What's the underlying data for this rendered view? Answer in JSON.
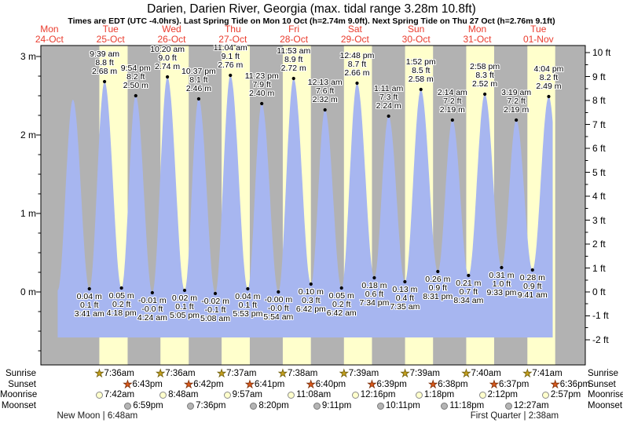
{
  "title": "Darien, Darien River, Georgia (max. tidal range 3.28m 10.8ft)",
  "subtitle": "Times are EDT (UTC -4.0hrs). Last Spring Tide on Mon 10 Oct (h=2.74m 9.0ft). Next Spring Tide on Thu 27 Oct (h=2.76m 9.1ft)",
  "colors": {
    "night_band": "#b2b2b2",
    "day_band": "#ffffcc",
    "tide_fill": "#a7b6f0",
    "day_label_red": "#ea3c2e",
    "sunrise_star": "#c5a01e",
    "sunset_star": "#da5a1c",
    "moonrise_circle": "#ffffcc",
    "moonset_circle": "#b5b5b5"
  },
  "chart_data": {
    "type": "area",
    "series_name": "Tide height",
    "x_axis": {
      "days": [
        {
          "dow": "Mon",
          "date": "24-Oct"
        },
        {
          "dow": "Tue",
          "date": "25-Oct"
        },
        {
          "dow": "Wed",
          "date": "26-Oct"
        },
        {
          "dow": "Thu",
          "date": "27-Oct"
        },
        {
          "dow": "Fri",
          "date": "28-Oct"
        },
        {
          "dow": "Sat",
          "date": "29-Oct"
        },
        {
          "dow": "Sun",
          "date": "30-Oct"
        },
        {
          "dow": "Mon",
          "date": "31-Oct"
        },
        {
          "dow": "Tue",
          "date": "01-Nov"
        }
      ]
    },
    "y_axis_left": {
      "unit": "m",
      "major_ticks": [
        3,
        2,
        1,
        0
      ],
      "tick_suffix": " m",
      "range_m": [
        -0.93,
        3.14
      ]
    },
    "y_axis_right": {
      "unit": "ft",
      "major_ticks": [
        10,
        9,
        8,
        7,
        6,
        5,
        4,
        3,
        2,
        1,
        0,
        -1,
        -2
      ],
      "tick_suffix": " ft"
    },
    "extremes": [
      {
        "day": 0,
        "time": "3:15 pm",
        "height_m": 0.02,
        "type": "low",
        "labeled": false,
        "estimated": true
      },
      {
        "day": 0,
        "time": "9:14 pm",
        "height_m": 2.45,
        "type": "high",
        "labeled": false,
        "estimated": true
      },
      {
        "day": 1,
        "time": "3:41 am",
        "height_m": 0.04,
        "type": "low",
        "labeled": true,
        "m_label": "0.04 m",
        "ft_label": "0.1 ft"
      },
      {
        "day": 1,
        "time": "9:39 am",
        "height_m": 2.68,
        "type": "high",
        "labeled": true,
        "m_label": "2.68 m",
        "ft_label": "8.8 ft"
      },
      {
        "day": 1,
        "time": "4:18 pm",
        "height_m": 0.05,
        "type": "low",
        "labeled": true,
        "m_label": "0.05 m",
        "ft_label": "0.2 ft"
      },
      {
        "day": 1,
        "time": "9:54 pm",
        "height_m": 2.5,
        "type": "high",
        "labeled": true,
        "m_label": "2.50 m",
        "ft_label": "8.2 ft"
      },
      {
        "day": 2,
        "time": "4:24 am",
        "height_m": -0.01,
        "type": "low",
        "labeled": true,
        "m_label": "-0.01 m",
        "ft_label": "-0.0 ft"
      },
      {
        "day": 2,
        "time": "10:20 am",
        "height_m": 2.74,
        "type": "high",
        "labeled": true,
        "m_label": "2.74 m",
        "ft_label": "9.0 ft"
      },
      {
        "day": 2,
        "time": "5:05 pm",
        "height_m": 0.02,
        "type": "low",
        "labeled": true,
        "m_label": "0.02 m",
        "ft_label": "0.1 ft"
      },
      {
        "day": 2,
        "time": "10:37 pm",
        "height_m": 2.46,
        "type": "high",
        "labeled": true,
        "m_label": "2.46 m",
        "ft_label": "8.1 ft"
      },
      {
        "day": 3,
        "time": "5:08 am",
        "height_m": -0.02,
        "type": "low",
        "labeled": true,
        "m_label": "-0.02 m",
        "ft_label": "-0.1 ft"
      },
      {
        "day": 3,
        "time": "11:04 am",
        "height_m": 2.76,
        "type": "high",
        "labeled": true,
        "m_label": "2.76 m",
        "ft_label": "9.1 ft"
      },
      {
        "day": 3,
        "time": "5:53 pm",
        "height_m": 0.04,
        "type": "low",
        "labeled": true,
        "m_label": "0.04 m",
        "ft_label": "0.1 ft"
      },
      {
        "day": 3,
        "time": "11:23 pm",
        "height_m": 2.4,
        "type": "high",
        "labeled": true,
        "m_label": "2.40 m",
        "ft_label": "7.9 ft"
      },
      {
        "day": 4,
        "time": "5:54 am",
        "height_m": -0.0,
        "type": "low",
        "labeled": true,
        "m_label": "-0.00 m",
        "ft_label": "-0.0 ft"
      },
      {
        "day": 4,
        "time": "11:53 am",
        "height_m": 2.72,
        "type": "high",
        "labeled": true,
        "m_label": "2.72 m",
        "ft_label": "8.9 ft"
      },
      {
        "day": 4,
        "time": "6:42 pm",
        "height_m": 0.1,
        "type": "low",
        "labeled": true,
        "m_label": "0.10 m",
        "ft_label": "0.3 ft"
      },
      {
        "day": 5,
        "time": "12:13 am",
        "height_m": 2.32,
        "type": "high",
        "labeled": true,
        "m_label": "2.32 m",
        "ft_label": "7.6 ft"
      },
      {
        "day": 5,
        "time": "6:42 am",
        "height_m": 0.05,
        "type": "low",
        "labeled": true,
        "m_label": "0.05 m",
        "ft_label": "0.2 ft"
      },
      {
        "day": 5,
        "time": "12:48 pm",
        "height_m": 2.66,
        "type": "high",
        "labeled": true,
        "m_label": "2.66 m",
        "ft_label": "8.7 ft"
      },
      {
        "day": 5,
        "time": "7:34 pm",
        "height_m": 0.18,
        "type": "low",
        "labeled": true,
        "m_label": "0.18 m",
        "ft_label": "0.6 ft"
      },
      {
        "day": 6,
        "time": "1:11 am",
        "height_m": 2.24,
        "type": "high",
        "labeled": true,
        "m_label": "2.24 m",
        "ft_label": "7.3 ft"
      },
      {
        "day": 6,
        "time": "7:35 am",
        "height_m": 0.13,
        "type": "low",
        "labeled": true,
        "m_label": "0.13 m",
        "ft_label": "0.4 ft"
      },
      {
        "day": 6,
        "time": "1:52 pm",
        "height_m": 2.58,
        "type": "high",
        "labeled": true,
        "m_label": "2.58 m",
        "ft_label": "8.5 ft"
      },
      {
        "day": 6,
        "time": "8:31 pm",
        "height_m": 0.26,
        "type": "low",
        "labeled": true,
        "m_label": "0.26 m",
        "ft_label": "0.9 ft"
      },
      {
        "day": 7,
        "time": "2:14 am",
        "height_m": 2.19,
        "type": "high",
        "labeled": true,
        "m_label": "2.19 m",
        "ft_label": "7.2 ft"
      },
      {
        "day": 7,
        "time": "8:34 am",
        "height_m": 0.21,
        "type": "low",
        "labeled": true,
        "m_label": "0.21 m",
        "ft_label": "0.7 ft"
      },
      {
        "day": 7,
        "time": "2:58 pm",
        "height_m": 2.52,
        "type": "high",
        "labeled": true,
        "m_label": "2.52 m",
        "ft_label": "8.3 ft"
      },
      {
        "day": 7,
        "time": "9:33 pm",
        "height_m": 0.31,
        "type": "low",
        "labeled": true,
        "m_label": "0.31 m",
        "ft_label": "1.0 ft"
      },
      {
        "day": 8,
        "time": "3:19 am",
        "height_m": 2.19,
        "type": "high",
        "labeled": true,
        "m_label": "2.19 m",
        "ft_label": "7.2 ft"
      },
      {
        "day": 8,
        "time": "9:41 am",
        "height_m": 0.28,
        "type": "low",
        "labeled": true,
        "m_label": "0.28 m",
        "ft_label": "0.9 ft"
      },
      {
        "day": 8,
        "time": "4:04 pm",
        "height_m": 2.49,
        "type": "high",
        "labeled": true,
        "m_label": "2.49 m",
        "ft_label": "8.2 ft"
      },
      {
        "day": 8,
        "time": "10:09 pm",
        "height_m": 0.35,
        "type": "low",
        "labeled": false,
        "estimated": true
      }
    ]
  },
  "astro": {
    "rows": [
      {
        "label": "Sunrise",
        "icon": "sunrise-star-icon",
        "events": [
          {
            "day": 1,
            "time": "7:36am"
          },
          {
            "day": 2,
            "time": "7:36am"
          },
          {
            "day": 3,
            "time": "7:37am"
          },
          {
            "day": 4,
            "time": "7:38am"
          },
          {
            "day": 5,
            "time": "7:39am"
          },
          {
            "day": 6,
            "time": "7:39am"
          },
          {
            "day": 7,
            "time": "7:40am"
          },
          {
            "day": 8,
            "time": "7:41am"
          }
        ]
      },
      {
        "label": "Sunset",
        "icon": "sunset-star-icon",
        "events": [
          {
            "day": 1,
            "time": "6:43pm"
          },
          {
            "day": 2,
            "time": "6:42pm"
          },
          {
            "day": 3,
            "time": "6:41pm"
          },
          {
            "day": 4,
            "time": "6:40pm"
          },
          {
            "day": 5,
            "time": "6:39pm"
          },
          {
            "day": 6,
            "time": "6:38pm"
          },
          {
            "day": 7,
            "time": "6:37pm"
          },
          {
            "day": 8,
            "time": "6:36pm"
          }
        ]
      },
      {
        "label": "Moonrise",
        "icon": "moonrise-circle-icon",
        "events": [
          {
            "day": 1,
            "time": "7:42am"
          },
          {
            "day": 2,
            "time": "8:48am"
          },
          {
            "day": 3,
            "time": "9:57am"
          },
          {
            "day": 4,
            "time": "11:08am"
          },
          {
            "day": 5,
            "time": "12:16pm"
          },
          {
            "day": 6,
            "time": "1:18pm"
          },
          {
            "day": 7,
            "time": "2:12pm"
          },
          {
            "day": 8,
            "time": "2:57pm"
          }
        ]
      },
      {
        "label": "Moonset",
        "icon": "moonset-circle-icon",
        "events": [
          {
            "day": 1,
            "time": "6:59pm"
          },
          {
            "day": 2,
            "time": "7:36pm"
          },
          {
            "day": 3,
            "time": "8:20pm"
          },
          {
            "day": 4,
            "time": "9:11pm"
          },
          {
            "day": 5,
            "time": "10:11pm"
          },
          {
            "day": 6,
            "time": "11:18pm"
          },
          {
            "day": 8,
            "time": "12:27am"
          }
        ]
      }
    ],
    "phases": [
      {
        "name": "New Moon",
        "time": "6:48am",
        "day": 1,
        "separator": "|"
      },
      {
        "name": "First Quarter",
        "time": "2:38am",
        "day": 8,
        "separator": "|"
      }
    ]
  }
}
